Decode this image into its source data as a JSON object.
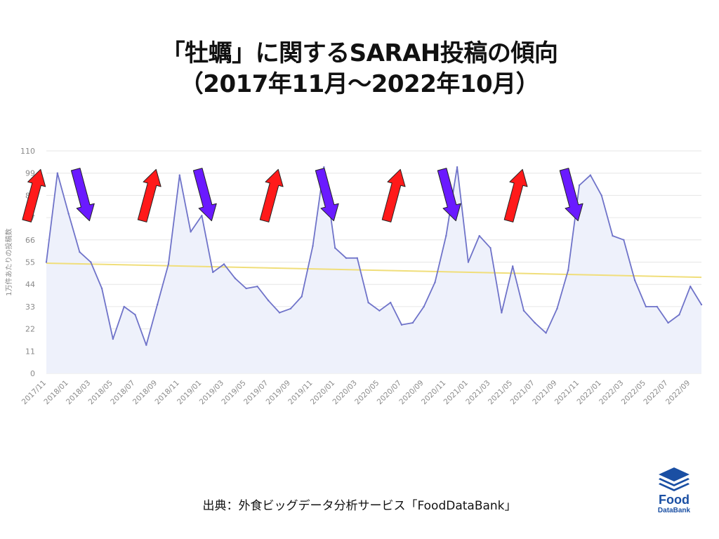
{
  "title": {
    "line1": "「牡蠣」に関するSARAH投稿の傾向",
    "line2": "（2017年11月〜2022年10月）"
  },
  "source_text": "出典：外食ビッグデータ分析サービス「FoodDataBank」",
  "logo": {
    "line1": "Food",
    "line2": "DataBank"
  },
  "colors": {
    "series_line": "#6f73c9",
    "series_fill": "#eef1fb",
    "trend_line": "#f0de7a",
    "up_arrow": "#ff1a1a",
    "down_arrow": "#6a1aff",
    "grid": "#e6e6e6",
    "logo": "#1a4fa3"
  },
  "chart_data": {
    "type": "area",
    "ylabel": "1万件あたりの投稿数",
    "ylim": [
      0,
      110
    ],
    "yticks": [
      0,
      11,
      22,
      33,
      44,
      55,
      66,
      77,
      88,
      99,
      110
    ],
    "ytick_labels": [
      "0",
      "11",
      "22",
      "33",
      "44",
      "55",
      "66",
      "77",
      "88",
      "99",
      "110"
    ],
    "x": [
      "2017/11",
      "2017/12",
      "2018/01",
      "2018/02",
      "2018/03",
      "2018/04",
      "2018/05",
      "2018/06",
      "2018/07",
      "2018/08",
      "2018/09",
      "2018/10",
      "2018/11",
      "2018/12",
      "2019/01",
      "2019/02",
      "2019/03",
      "2019/04",
      "2019/05",
      "2019/06",
      "2019/07",
      "2019/08",
      "2019/09",
      "2019/10",
      "2019/11",
      "2019/12",
      "2020/01",
      "2020/02",
      "2020/03",
      "2020/04",
      "2020/05",
      "2020/06",
      "2020/07",
      "2020/08",
      "2020/09",
      "2020/10",
      "2020/11",
      "2020/12",
      "2021/01",
      "2021/02",
      "2021/03",
      "2021/04",
      "2021/05",
      "2021/06",
      "2021/07",
      "2021/08",
      "2021/09",
      "2021/10",
      "2021/11",
      "2021/12",
      "2022/01",
      "2022/02",
      "2022/03",
      "2022/04",
      "2022/05",
      "2022/06",
      "2022/07",
      "2022/08",
      "2022/09",
      "2022/10"
    ],
    "xtick_labels": [
      "2017/11",
      "2018/01",
      "2018/03",
      "2018/05",
      "2018/07",
      "2018/09",
      "2018/11",
      "2019/01",
      "2019/03",
      "2019/05",
      "2019/07",
      "2019/09",
      "2019/11",
      "2020/01",
      "2020/03",
      "2020/05",
      "2020/07",
      "2020/09",
      "2020/11",
      "2021/01",
      "2021/03",
      "2021/05",
      "2021/07",
      "2021/09",
      "2021/11",
      "2022/01",
      "2022/03",
      "2022/05",
      "2022/07",
      "2022/09"
    ],
    "series": [
      {
        "values": [
          55,
          99,
          79,
          60,
          55,
          42,
          17,
          33,
          29,
          14,
          34,
          54,
          98,
          70,
          78,
          50,
          54,
          47,
          42,
          43,
          36,
          30,
          32,
          38,
          63,
          102,
          62,
          57,
          57,
          35,
          31,
          35,
          24,
          25,
          33,
          45,
          68,
          102,
          55,
          68,
          62,
          30,
          53,
          31,
          25,
          20,
          32,
          51,
          93,
          98,
          88,
          68,
          66,
          46,
          33,
          33,
          25,
          29,
          43,
          34
        ]
      }
    ],
    "trend": {
      "start": 54.5,
      "end": 47.5
    },
    "arrows": [
      {
        "dir": "up",
        "at": 0.0
      },
      {
        "dir": "down",
        "at": 4.4
      },
      {
        "dir": "up",
        "at": 10.4
      },
      {
        "dir": "down",
        "at": 15.4
      },
      {
        "dir": "up",
        "at": 21.4
      },
      {
        "dir": "down",
        "at": 26.4
      },
      {
        "dir": "up",
        "at": 32.4
      },
      {
        "dir": "down",
        "at": 37.4
      },
      {
        "dir": "up",
        "at": 43.4
      },
      {
        "dir": "down",
        "at": 48.4
      }
    ],
    "grid": true,
    "legend": "none"
  }
}
